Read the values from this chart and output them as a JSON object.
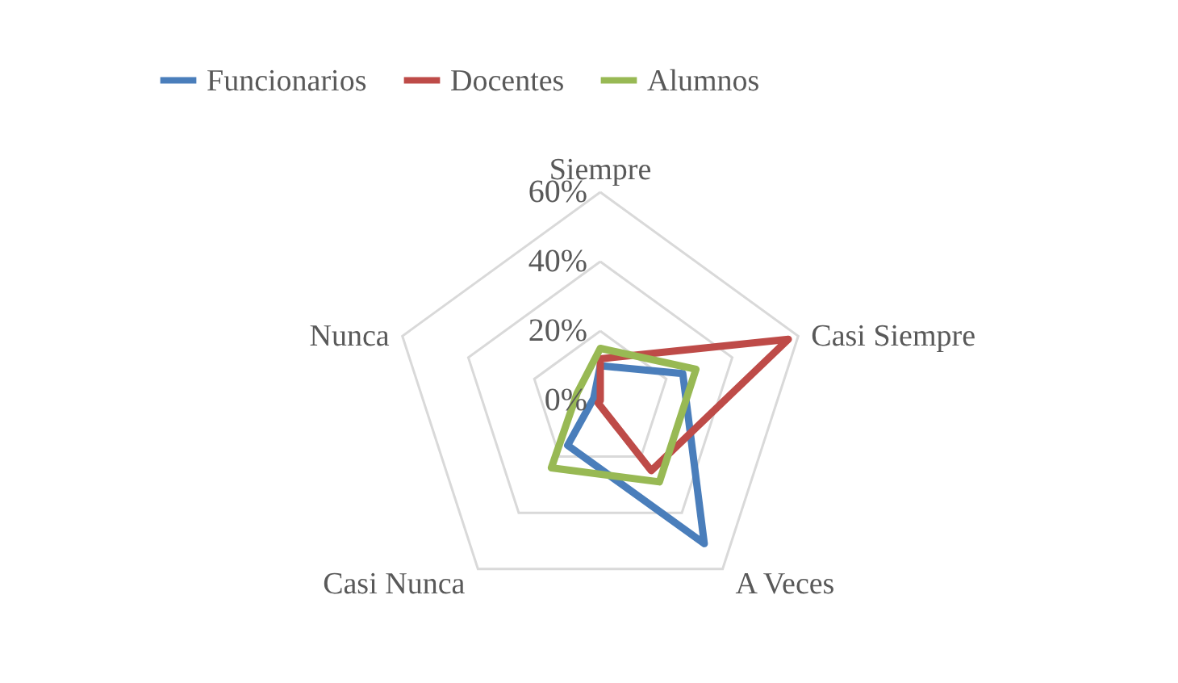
{
  "chart_data": {
    "type": "radar",
    "categories": [
      "Siempre",
      "Casi Siempre",
      "A Veces",
      "Casi Nunca",
      "Nunca"
    ],
    "series": [
      {
        "name": "Funcionarios",
        "color": "#4a7ebb",
        "values": [
          10,
          25,
          51,
          16,
          2
        ]
      },
      {
        "name": "Docentes",
        "color": "#be4b48",
        "values": [
          12,
          57,
          25,
          1,
          0
        ]
      },
      {
        "name": "Alumnos",
        "color": "#98b954",
        "values": [
          15,
          29,
          29,
          24,
          7
        ]
      }
    ],
    "ylim": [
      0,
      60
    ],
    "yticks": [
      {
        "value": 0,
        "label": "0%"
      },
      {
        "value": 20,
        "label": "20%"
      },
      {
        "value": 40,
        "label": "40%"
      },
      {
        "value": 60,
        "label": "60%"
      }
    ],
    "grid": true,
    "legend": "top"
  }
}
